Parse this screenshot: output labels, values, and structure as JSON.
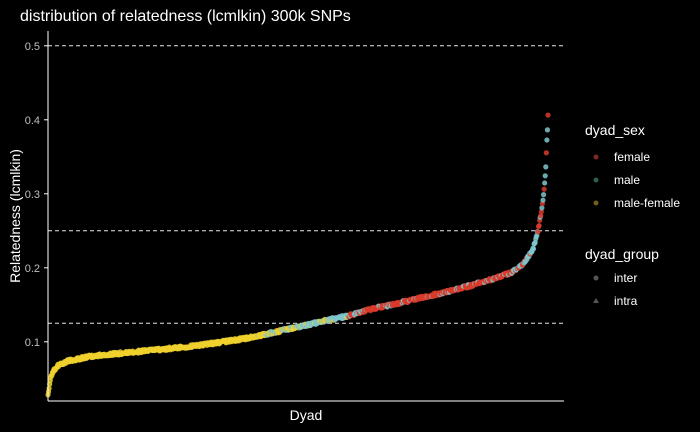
{
  "chart_data": {
    "type": "scatter",
    "title": "distribution of relatedness (lcmlkin) 300k SNPs",
    "xlabel": "Dyad",
    "ylabel": "Relatedness (lcmlkin)",
    "ylim": [
      0.02,
      0.52
    ],
    "yticks": [
      0.1,
      0.2,
      0.3,
      0.4,
      0.5
    ],
    "ytick_labels": [
      "0.1",
      "0.2",
      "0.3",
      "0.4",
      "0.5"
    ],
    "hlines": [
      0.125,
      0.25,
      0.5
    ],
    "grid": false,
    "legend_position": "right",
    "x": [
      0,
      0.005,
      0.01,
      0.02,
      0.04,
      0.08,
      0.12,
      0.2,
      0.3,
      0.4,
      0.5,
      0.55,
      0.6,
      0.65,
      0.7,
      0.75,
      0.8,
      0.85,
      0.9,
      0.93,
      0.95,
      0.97,
      0.98,
      0.99,
      0.995,
      1.0
    ],
    "y": [
      0.03,
      0.05,
      0.06,
      0.068,
      0.074,
      0.08,
      0.083,
      0.088,
      0.095,
      0.105,
      0.12,
      0.128,
      0.135,
      0.145,
      0.152,
      0.16,
      0.168,
      0.177,
      0.187,
      0.195,
      0.205,
      0.225,
      0.25,
      0.29,
      0.33,
      0.405
    ],
    "series": [
      {
        "dyad_sex": "female",
        "color": "#d93b2b"
      },
      {
        "dyad_sex": "male",
        "color": "#7fc6cc"
      },
      {
        "dyad_sex": "male-female",
        "color": "#f0d12e"
      }
    ],
    "legend": {
      "dyad_sex": {
        "title": "dyad_sex",
        "items": [
          "female",
          "male",
          "male-female"
        ]
      },
      "dyad_group": {
        "title": "dyad_group",
        "items": [
          "inter",
          "intra"
        ]
      }
    },
    "colors": {
      "female": "#d93b2b",
      "male": "#7fc6cc",
      "male_female": "#f0d12e",
      "legend_female": "#7a2a22",
      "legend_male": "#2f5e4c",
      "legend_male_female": "#6d5f1c",
      "legend_shape": "#555555"
    }
  }
}
